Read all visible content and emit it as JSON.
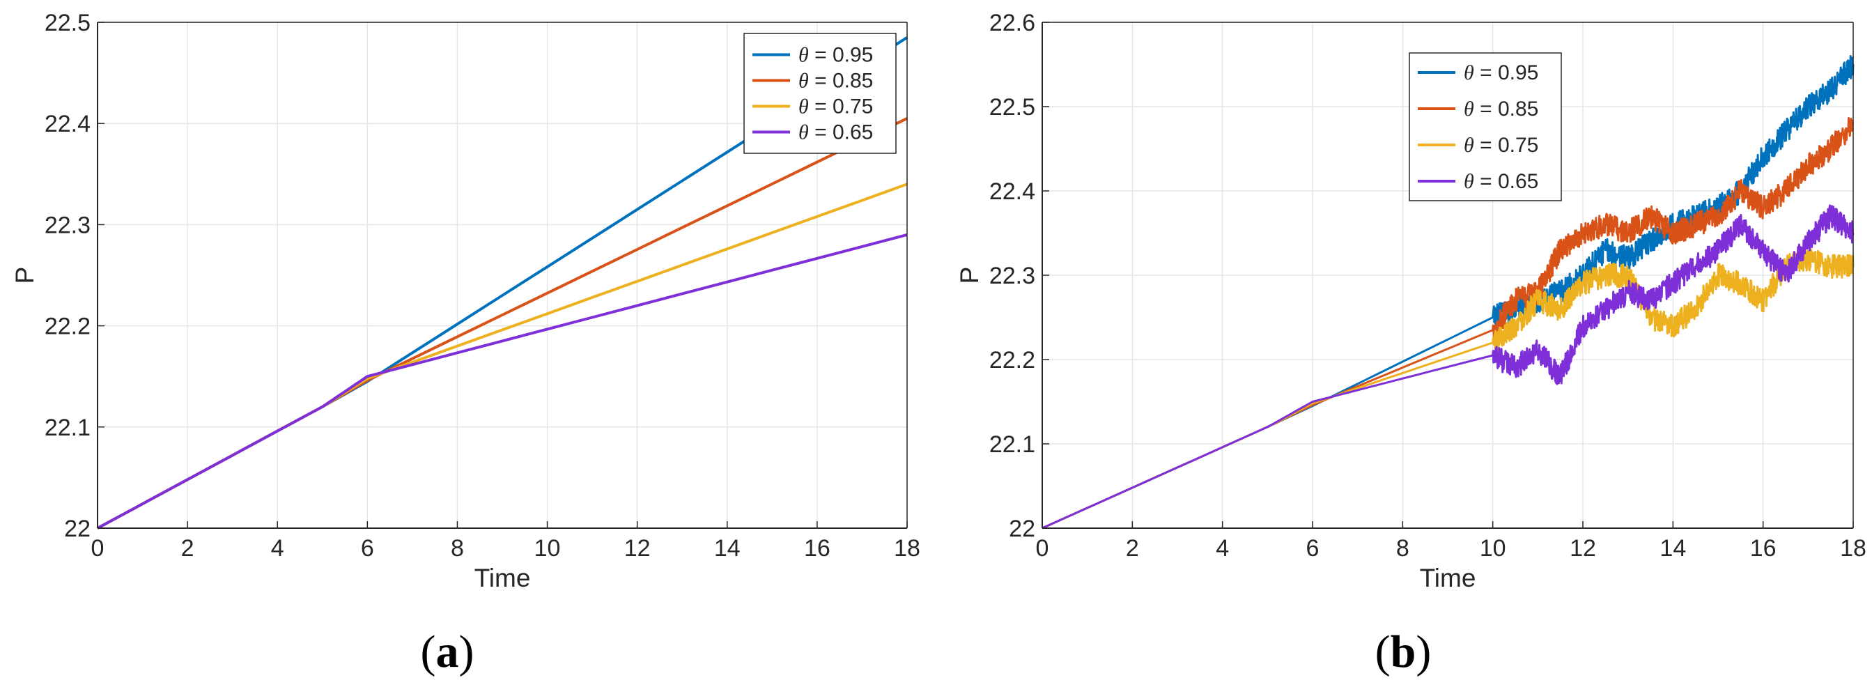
{
  "figure": {
    "panels": [
      {
        "label_open": "(",
        "label_letter": "a",
        "label_close": ")"
      },
      {
        "label_open": "(",
        "label_letter": "b",
        "label_close": ")"
      }
    ]
  },
  "chart_data": [
    {
      "type": "line",
      "xlabel": "Time",
      "ylabel": "P",
      "xlim": [
        0,
        18
      ],
      "ylim": [
        22.0,
        22.5
      ],
      "xticks": [
        "0",
        "2",
        "4",
        "6",
        "8",
        "10",
        "12",
        "14",
        "16",
        "18"
      ],
      "yticks": [
        "22",
        "22.1",
        "22.2",
        "22.3",
        "22.4",
        "22.5"
      ],
      "grid": true,
      "legend_position": "top-right",
      "series": [
        {
          "name": "θ = 0.95",
          "color": "#0072bd",
          "x": [
            0,
            5,
            6,
            18
          ],
          "y": [
            22.0,
            22.12,
            22.145,
            22.485
          ]
        },
        {
          "name": "θ = 0.85",
          "color": "#d95319",
          "x": [
            0,
            5,
            6,
            18
          ],
          "y": [
            22.0,
            22.12,
            22.146,
            22.405
          ]
        },
        {
          "name": "θ = 0.75",
          "color": "#edb120",
          "x": [
            0,
            5,
            6,
            18
          ],
          "y": [
            22.0,
            22.12,
            22.148,
            22.34
          ]
        },
        {
          "name": "θ = 0.65",
          "color": "#7e2fd8",
          "x": [
            0,
            5,
            6,
            18
          ],
          "y": [
            22.0,
            22.12,
            22.15,
            22.29
          ]
        }
      ]
    },
    {
      "type": "line",
      "xlabel": "Time",
      "ylabel": "P",
      "xlim": [
        0,
        18
      ],
      "ylim": [
        22.0,
        22.6
      ],
      "xticks": [
        "0",
        "2",
        "4",
        "6",
        "8",
        "10",
        "12",
        "14",
        "16",
        "18"
      ],
      "yticks": [
        "22",
        "22.1",
        "22.2",
        "22.3",
        "22.4",
        "22.5",
        "22.6"
      ],
      "grid": true,
      "legend_position": "top-center",
      "series": [
        {
          "name": "θ = 0.95",
          "color": "#0072bd",
          "x": [
            0,
            5,
            6,
            10,
            10.5,
            11,
            11.5,
            12,
            12.5,
            13,
            13.5,
            14,
            14.5,
            15,
            15.5,
            16,
            16.5,
            17,
            17.5,
            18
          ],
          "y": [
            22.0,
            22.12,
            22.145,
            22.25,
            22.26,
            22.27,
            22.28,
            22.3,
            22.33,
            22.32,
            22.34,
            22.36,
            22.37,
            22.38,
            22.4,
            22.44,
            22.47,
            22.5,
            22.52,
            22.55
          ]
        },
        {
          "name": "θ = 0.85",
          "color": "#d95319",
          "x": [
            0,
            5,
            6,
            10,
            10.5,
            11,
            11.5,
            12,
            12.5,
            13,
            13.5,
            14,
            14.5,
            15,
            15.5,
            16,
            16.5,
            17,
            17.5,
            18
          ],
          "y": [
            22.0,
            22.12,
            22.146,
            22.235,
            22.27,
            22.28,
            22.33,
            22.35,
            22.36,
            22.35,
            22.37,
            22.35,
            22.36,
            22.37,
            22.4,
            22.38,
            22.4,
            22.43,
            22.45,
            22.48
          ]
        },
        {
          "name": "θ = 0.75",
          "color": "#edb120",
          "x": [
            0,
            5,
            6,
            10,
            10.5,
            11,
            11.5,
            12,
            12.5,
            13,
            13.5,
            14,
            14.5,
            15,
            15.5,
            16,
            16.5,
            17,
            17.5,
            18
          ],
          "y": [
            22.0,
            22.12,
            22.148,
            22.22,
            22.24,
            22.27,
            22.26,
            22.29,
            22.3,
            22.3,
            22.25,
            22.24,
            22.26,
            22.3,
            22.29,
            22.27,
            22.31,
            22.32,
            22.31,
            22.31
          ]
        },
        {
          "name": "θ = 0.65",
          "color": "#7e2fd8",
          "x": [
            0,
            5,
            6,
            10,
            10.5,
            11,
            11.5,
            12,
            12.5,
            13,
            13.5,
            14,
            14.5,
            15,
            15.5,
            16,
            16.5,
            17,
            17.5,
            18
          ],
          "y": [
            22.0,
            22.12,
            22.15,
            22.205,
            22.19,
            22.21,
            22.18,
            22.24,
            22.26,
            22.28,
            22.27,
            22.29,
            22.31,
            22.33,
            22.36,
            22.33,
            22.3,
            22.34,
            22.37,
            22.35
          ]
        }
      ]
    }
  ]
}
